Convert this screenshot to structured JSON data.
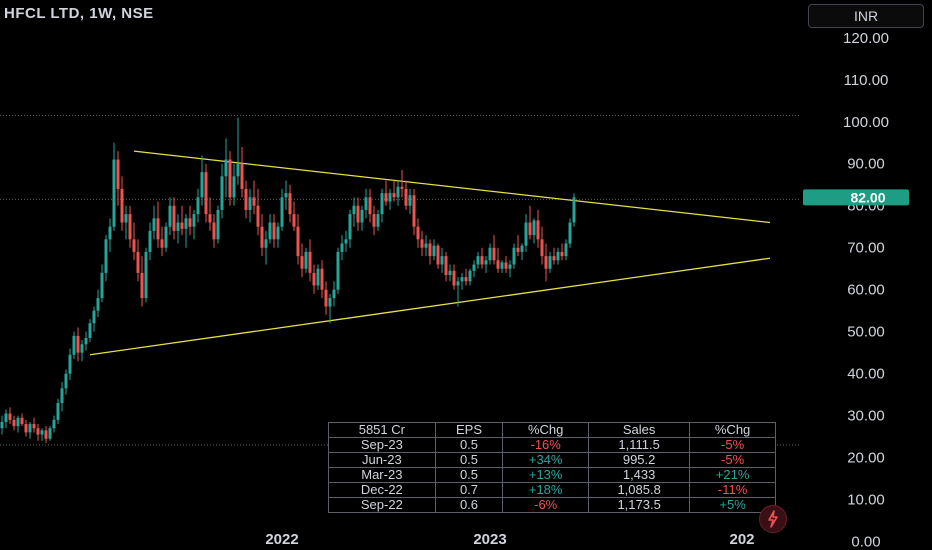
{
  "header": {
    "symbol_title": "HFCL LTD, 1W, NSE",
    "currency_label": "INR"
  },
  "colors": {
    "background": "#000000",
    "up": "#26a69a",
    "down": "#ef5350",
    "trendline": "#e6e04a",
    "price_tag": "#1e9c84",
    "axis_text": "#d1d4dc"
  },
  "chart_data": {
    "type": "candlestick",
    "y_axis_ticks": [
      "120.00",
      "110.00",
      "100.00",
      "90.00",
      "80.00",
      "70.00",
      "60.00",
      "50.00",
      "40.00",
      "30.00",
      "20.00",
      "10.00",
      "0.00"
    ],
    "ylim": [
      -2,
      129
    ],
    "x_axis_ticks": [
      {
        "label": "2022",
        "week_index": 70
      },
      {
        "label": "2023",
        "week_index": 122
      },
      {
        "label": "202",
        "week_index": 185
      }
    ],
    "current_price_label": "82.00",
    "current_price": 82.0,
    "reference_lines": [
      101.5,
      81.5,
      23.0
    ],
    "trendlines": [
      {
        "name": "upper",
        "from": [
          33,
          93.0
        ],
        "to": [
          192,
          76.0
        ]
      },
      {
        "name": "lower",
        "from": [
          22,
          44.5
        ],
        "to": [
          192,
          67.5
        ]
      }
    ],
    "candles": [
      [
        27.0,
        30.0,
        25.5,
        28.5
      ],
      [
        28.5,
        31.5,
        27.0,
        30.5
      ],
      [
        30.5,
        32.0,
        28.0,
        29.0
      ],
      [
        29.0,
        30.0,
        26.5,
        27.5
      ],
      [
        27.5,
        30.0,
        26.0,
        29.5
      ],
      [
        29.5,
        30.5,
        27.5,
        28.0
      ],
      [
        28.0,
        29.0,
        25.0,
        26.0
      ],
      [
        26.0,
        28.5,
        24.5,
        28.0
      ],
      [
        28.0,
        29.5,
        26.0,
        27.0
      ],
      [
        27.0,
        28.0,
        24.0,
        25.5
      ],
      [
        25.5,
        27.0,
        24.0,
        26.5
      ],
      [
        26.5,
        27.5,
        23.5,
        24.5
      ],
      [
        24.5,
        27.5,
        24.0,
        27.0
      ],
      [
        27.0,
        30.0,
        26.0,
        29.0
      ],
      [
        29.0,
        34.0,
        28.0,
        33.0
      ],
      [
        33.0,
        38.0,
        31.0,
        36.5
      ],
      [
        36.5,
        41.0,
        35.0,
        40.0
      ],
      [
        40.0,
        46.0,
        38.5,
        44.5
      ],
      [
        44.5,
        50.0,
        43.5,
        49.0
      ],
      [
        49.0,
        51.0,
        43.0,
        45.0
      ],
      [
        45.0,
        48.0,
        43.0,
        47.0
      ],
      [
        47.0,
        50.0,
        45.5,
        48.5
      ],
      [
        48.5,
        53.0,
        47.5,
        52.0
      ],
      [
        52.0,
        56.0,
        50.0,
        55.0
      ],
      [
        55.0,
        60.0,
        53.5,
        58.0
      ],
      [
        58.0,
        66.0,
        57.0,
        64.0
      ],
      [
        64.0,
        73.0,
        62.0,
        72.0
      ],
      [
        72.0,
        77.0,
        69.0,
        75.0
      ],
      [
        75.0,
        95.0,
        74.0,
        91.0
      ],
      [
        91.0,
        93.0,
        80.0,
        84.0
      ],
      [
        84.0,
        87.0,
        74.0,
        76.0
      ],
      [
        76.0,
        80.0,
        72.0,
        78.0
      ],
      [
        78.0,
        80.0,
        70.0,
        72.0
      ],
      [
        72.0,
        76.0,
        67.0,
        69.0
      ],
      [
        69.0,
        72.0,
        62.0,
        64.0
      ],
      [
        64.0,
        68.0,
        56.0,
        58.0
      ],
      [
        58.0,
        70.0,
        57.0,
        69.0
      ],
      [
        69.0,
        76.0,
        67.0,
        74.0
      ],
      [
        74.0,
        80.0,
        72.0,
        77.0
      ],
      [
        77.0,
        81.0,
        70.0,
        72.0
      ],
      [
        72.0,
        75.0,
        68.0,
        70.0
      ],
      [
        70.0,
        76.0,
        69.0,
        75.0
      ],
      [
        75.0,
        82.0,
        73.0,
        80.0
      ],
      [
        80.0,
        82.0,
        72.0,
        74.0
      ],
      [
        74.0,
        78.0,
        71.0,
        76.0
      ],
      [
        76.0,
        80.0,
        73.0,
        74.5
      ],
      [
        74.5,
        78.0,
        70.0,
        77.0
      ],
      [
        77.0,
        80.0,
        73.0,
        75.0
      ],
      [
        75.0,
        79.0,
        72.0,
        78.0
      ],
      [
        78.0,
        84.0,
        76.0,
        82.0
      ],
      [
        82.0,
        92.0,
        80.0,
        88.0
      ],
      [
        88.0,
        90.0,
        76.0,
        78.0
      ],
      [
        78.0,
        82.0,
        74.0,
        76.0
      ],
      [
        76.0,
        78.0,
        70.0,
        72.0
      ],
      [
        72.0,
        80.0,
        71.0,
        79.0
      ],
      [
        79.0,
        90.0,
        77.0,
        87.0
      ],
      [
        87.0,
        96.0,
        82.0,
        91.0
      ],
      [
        91.0,
        93.0,
        80.0,
        82.0
      ],
      [
        82.0,
        90.0,
        80.0,
        87.0
      ],
      [
        87.0,
        101.0,
        85.0,
        90.0
      ],
      [
        90.0,
        94.0,
        82.0,
        84.0
      ],
      [
        84.0,
        86.0,
        77.0,
        79.0
      ],
      [
        79.0,
        84.0,
        76.0,
        82.0
      ],
      [
        82.0,
        86.0,
        78.0,
        80.0
      ],
      [
        80.0,
        84.0,
        73.0,
        75.0
      ],
      [
        75.0,
        78.0,
        68.0,
        70.0
      ],
      [
        70.0,
        74.0,
        66.0,
        72.0
      ],
      [
        72.0,
        78.0,
        71.0,
        76.0
      ],
      [
        76.0,
        78.0,
        70.0,
        72.0
      ],
      [
        72.0,
        76.0,
        70.0,
        75.0
      ],
      [
        75.0,
        84.0,
        74.0,
        82.0
      ],
      [
        82.0,
        86.0,
        79.0,
        83.0
      ],
      [
        83.0,
        85.0,
        76.0,
        78.0
      ],
      [
        78.0,
        81.0,
        74.0,
        75.0
      ],
      [
        75.0,
        78.0,
        66.0,
        68.0
      ],
      [
        68.0,
        71.0,
        63.0,
        65.0
      ],
      [
        65.0,
        70.0,
        64.0,
        69.0
      ],
      [
        69.0,
        72.0,
        62.0,
        64.0
      ],
      [
        64.0,
        66.0,
        59.0,
        61.0
      ],
      [
        61.0,
        66.0,
        60.0,
        65.0
      ],
      [
        65.0,
        67.0,
        58.0,
        60.0
      ],
      [
        60.0,
        62.0,
        54.0,
        56.0
      ],
      [
        56.0,
        59.0,
        52.0,
        58.0
      ],
      [
        58.0,
        62.0,
        56.0,
        60.0
      ],
      [
        60.0,
        70.0,
        59.0,
        69.0
      ],
      [
        69.0,
        73.0,
        67.0,
        71.0
      ],
      [
        71.0,
        74.0,
        69.0,
        72.0
      ],
      [
        72.0,
        79.0,
        70.0,
        78.0
      ],
      [
        78.0,
        82.0,
        75.0,
        80.0
      ],
      [
        80.0,
        82.0,
        74.0,
        76.0
      ],
      [
        76.0,
        80.0,
        74.0,
        79.0
      ],
      [
        79.0,
        84.0,
        77.0,
        82.0
      ],
      [
        82.0,
        84.0,
        76.0,
        78.0
      ],
      [
        78.0,
        80.0,
        73.0,
        75.0
      ],
      [
        75.0,
        79.0,
        74.0,
        78.0
      ],
      [
        78.0,
        84.0,
        76.0,
        83.0
      ],
      [
        83.0,
        86.0,
        80.0,
        81.0
      ],
      [
        81.0,
        84.0,
        79.0,
        83.0
      ],
      [
        83.0,
        86.0,
        81.0,
        82.0
      ],
      [
        82.0,
        86.0,
        80.0,
        84.5
      ],
      [
        84.5,
        88.5,
        82.0,
        84.0
      ],
      [
        84.0,
        86.0,
        79.0,
        80.0
      ],
      [
        80.0,
        84.0,
        78.0,
        82.5
      ],
      [
        82.5,
        84.0,
        73.0,
        75.0
      ],
      [
        75.0,
        77.0,
        70.0,
        72.0
      ],
      [
        72.0,
        74.0,
        68.0,
        70.0
      ],
      [
        70.0,
        73.0,
        68.0,
        71.0
      ],
      [
        71.0,
        72.0,
        66.0,
        68.0
      ],
      [
        68.0,
        72.0,
        67.0,
        70.5
      ],
      [
        70.5,
        71.0,
        65.0,
        66.0
      ],
      [
        66.0,
        70.0,
        64.0,
        68.0
      ],
      [
        68.0,
        69.0,
        62.0,
        63.5
      ],
      [
        63.5,
        66.0,
        62.0,
        64.5
      ],
      [
        64.5,
        66.0,
        60.0,
        61.0
      ],
      [
        61.0,
        63.0,
        56.0,
        62.0
      ],
      [
        62.0,
        64.0,
        60.0,
        63.0
      ],
      [
        63.0,
        65.0,
        61.0,
        62.0
      ],
      [
        62.0,
        65.0,
        61.0,
        64.5
      ],
      [
        64.5,
        67.0,
        63.0,
        66.0
      ],
      [
        66.0,
        69.0,
        65.0,
        68.0
      ],
      [
        68.0,
        70.0,
        65.0,
        66.0
      ],
      [
        66.0,
        68.0,
        64.0,
        67.0
      ],
      [
        67.0,
        71.0,
        66.0,
        70.0
      ],
      [
        70.0,
        73.0,
        66.0,
        67.0
      ],
      [
        67.0,
        70.0,
        64.0,
        65.0
      ],
      [
        65.0,
        67.0,
        64.0,
        66.5
      ],
      [
        66.5,
        68.0,
        64.0,
        65.0
      ],
      [
        65.0,
        67.0,
        63.0,
        66.0
      ],
      [
        66.0,
        71.0,
        65.0,
        70.0
      ],
      [
        70.0,
        73.0,
        68.0,
        69.0
      ],
      [
        69.0,
        71.0,
        67.0,
        70.5
      ],
      [
        70.5,
        78.0,
        69.0,
        76.0
      ],
      [
        76.0,
        80.0,
        72.0,
        73.0
      ],
      [
        73.0,
        77.0,
        71.0,
        76.5
      ],
      [
        76.5,
        79.0,
        70.0,
        72.0
      ],
      [
        72.0,
        75.0,
        66.0,
        68.0
      ],
      [
        68.0,
        71.0,
        62.0,
        65.0
      ],
      [
        65.0,
        69.0,
        64.0,
        68.0
      ],
      [
        68.0,
        70.0,
        66.0,
        67.0
      ],
      [
        67.0,
        70.0,
        66.0,
        69.0
      ],
      [
        69.0,
        71.0,
        67.0,
        68.0
      ],
      [
        68.0,
        72.0,
        67.0,
        71.0
      ],
      [
        71.0,
        77.0,
        70.0,
        76.0
      ],
      [
        76.0,
        83.0,
        75.0,
        82.0
      ]
    ]
  },
  "financials": {
    "headers": [
      "5851 Cr",
      "EPS",
      "%Chg",
      "Sales",
      "%Chg"
    ],
    "rows": [
      {
        "period": "Sep-23",
        "eps": "0.5",
        "eps_chg": "-16%",
        "eps_dir": "neg",
        "sales": "1,111.5",
        "sales_chg": "-5%",
        "sales_dir": "neg"
      },
      {
        "period": "Jun-23",
        "eps": "0.5",
        "eps_chg": "+34%",
        "eps_dir": "pos",
        "sales": "995.2",
        "sales_chg": "-5%",
        "sales_dir": "neg"
      },
      {
        "period": "Mar-23",
        "eps": "0.5",
        "eps_chg": "+13%",
        "eps_dir": "pos",
        "sales": "1,433",
        "sales_chg": "+21%",
        "sales_dir": "pos"
      },
      {
        "period": "Dec-22",
        "eps": "0.7",
        "eps_chg": "+18%",
        "eps_dir": "pos",
        "sales": "1,085.8",
        "sales_chg": "-11%",
        "sales_dir": "neg"
      },
      {
        "period": "Sep-22",
        "eps": "0.6",
        "eps_chg": "-6%",
        "eps_dir": "neg",
        "sales": "1,173.5",
        "sales_chg": "+5%",
        "sales_dir": "pos"
      }
    ]
  },
  "icons": {
    "flash": "lightning-icon"
  }
}
